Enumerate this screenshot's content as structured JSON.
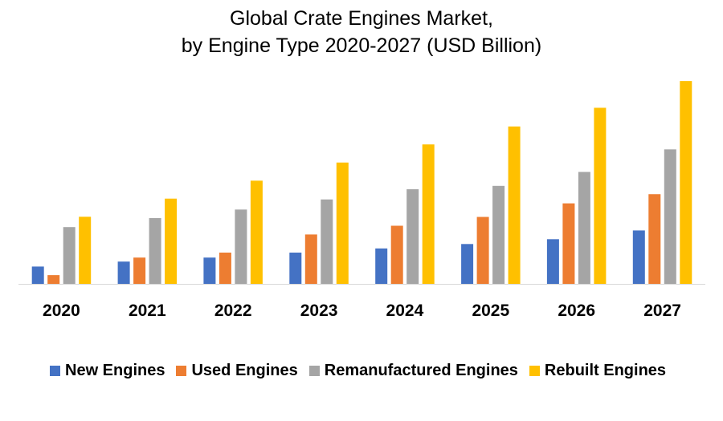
{
  "chart_data": {
    "type": "bar",
    "title": [
      "Global Crate Engines Market,",
      "by Engine Type 2020-2027 (USD Billion)"
    ],
    "xlabel": "",
    "ylabel": "",
    "categories": [
      "2020",
      "2021",
      "2022",
      "2023",
      "2024",
      "2025",
      "2026",
      "2027"
    ],
    "ylim": [
      0,
      100
    ],
    "grid": false,
    "legend_position": "bottom",
    "series": [
      {
        "name": "New Engines",
        "color": "#4472C4",
        "values": [
          8.7,
          11.2,
          13.2,
          15.7,
          17.8,
          20.0,
          22.4,
          26.8
        ]
      },
      {
        "name": "Used Engines",
        "color": "#ED7D31",
        "values": [
          4.4,
          13.2,
          15.7,
          24.8,
          29.2,
          33.6,
          40.4,
          45.0
        ]
      },
      {
        "name": "Remanufactured Engines",
        "color": "#A5A5A5",
        "values": [
          28.5,
          33.0,
          37.3,
          42.4,
          47.5,
          49.2,
          56.2,
          67.5
        ]
      },
      {
        "name": "Rebuilt Engines",
        "color": "#FFC000",
        "values": [
          33.7,
          42.8,
          51.8,
          60.9,
          70.0,
          79.0,
          88.4,
          101.8
        ]
      }
    ]
  }
}
